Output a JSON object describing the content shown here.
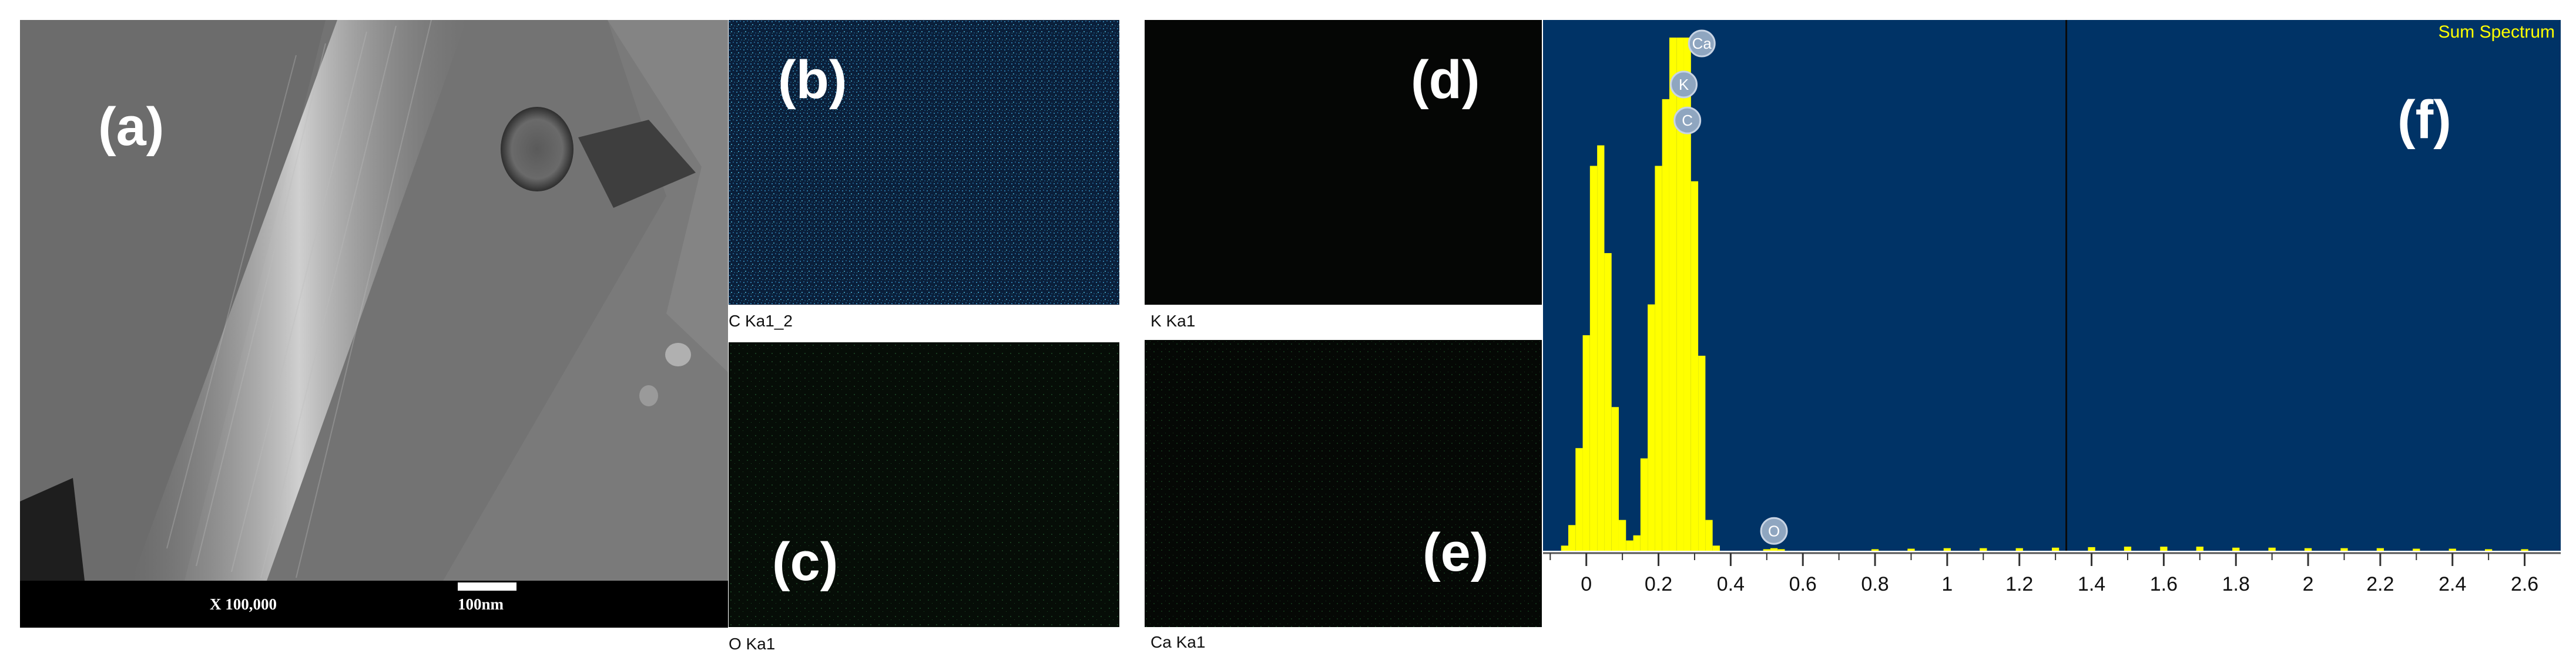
{
  "panels": {
    "a": {
      "letter": "(a)",
      "magnification": "X 100,000",
      "scale_label": "100nm"
    },
    "b": {
      "letter": "(b)",
      "caption": "C Ka1_2",
      "map_color": "#3fa0c0"
    },
    "c": {
      "letter": "(c)",
      "caption": "O Ka1",
      "map_color": "#2a7a3a"
    },
    "d": {
      "letter": "(d)",
      "caption": "K Ka1",
      "map_color": "#2a3a2a"
    },
    "e": {
      "letter": "(e)",
      "caption": "Ca Ka1",
      "map_color": "#2a5a3a"
    },
    "f": {
      "letter": "(f)"
    }
  },
  "chart_data": {
    "type": "bar",
    "title": "Sum Spectrum",
    "xlabel": "",
    "ylabel": "",
    "xlim": [
      -0.12,
      2.7
    ],
    "ylim": [
      0,
      100
    ],
    "x_ticks": [
      "0",
      "0.2",
      "0.4",
      "0.6",
      "0.8",
      "1",
      "1.2",
      "1.4",
      "1.6",
      "1.8",
      "2",
      "2.2",
      "2.4",
      "2.6"
    ],
    "bin_width": 0.02,
    "x": [
      -0.06,
      -0.04,
      -0.02,
      0.0,
      0.02,
      0.04,
      0.06,
      0.08,
      0.1,
      0.12,
      0.14,
      0.16,
      0.18,
      0.2,
      0.22,
      0.24,
      0.26,
      0.28,
      0.3,
      0.32,
      0.34,
      0.36,
      0.38,
      0.4,
      0.42,
      0.44,
      0.46,
      0.48,
      0.5,
      0.52,
      0.54,
      0.56,
      0.58,
      0.6,
      0.7,
      0.8,
      0.9,
      1.0,
      1.1,
      1.2,
      1.3,
      1.4,
      1.5,
      1.6,
      1.7,
      1.8,
      1.9,
      2.0,
      2.1,
      2.2,
      2.3,
      2.4,
      2.5,
      2.6
    ],
    "values": [
      1,
      5,
      20,
      42,
      75,
      79,
      58,
      28,
      6,
      2,
      3,
      18,
      48,
      75,
      88,
      100,
      100,
      100,
      72,
      38,
      6,
      1,
      0,
      0,
      0,
      0,
      0,
      0,
      0.3,
      0.5,
      0.3,
      0,
      0,
      0,
      0,
      0.3,
      0.4,
      0.5,
      0.5,
      0.5,
      0.6,
      0.7,
      0.8,
      0.8,
      0.8,
      0.6,
      0.6,
      0.5,
      0.5,
      0.5,
      0.4,
      0.4,
      0.3,
      0.3
    ],
    "bar_color": "#ffff00",
    "background": "#003366",
    "cursor_x": 1.33,
    "peak_labels": [
      {
        "label": "Ca",
        "x": 0.32,
        "y": 100
      },
      {
        "label": "K",
        "x": 0.27,
        "y": 92
      },
      {
        "label": "C",
        "x": 0.28,
        "y": 85
      },
      {
        "label": "O",
        "x": 0.52,
        "y": 5
      }
    ]
  }
}
